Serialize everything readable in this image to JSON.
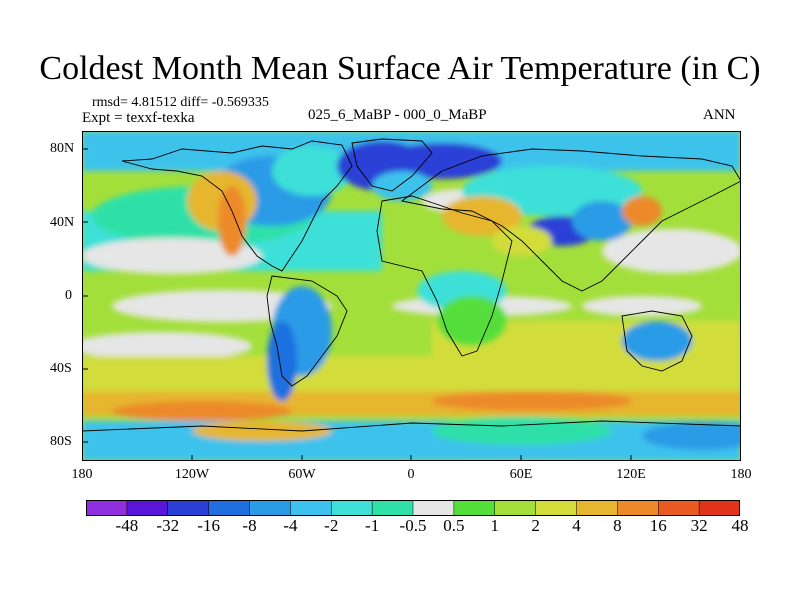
{
  "title": "Coldest Month Mean Surface Air Temperature (in C)",
  "stats": "rmsd= 4.81512 diff= -0.569335",
  "experiment": "Expt = texxf-texka",
  "period": "025_6_MaBP - 000_0_MaBP",
  "season": "ANN",
  "map": {
    "lat_labels": [
      "80N",
      "40N",
      "0",
      "40S",
      "80S"
    ],
    "lat_values": [
      80,
      40,
      0,
      -40,
      -80
    ],
    "lon_labels": [
      "180",
      "120W",
      "60W",
      "0",
      "60E",
      "120E",
      "180"
    ],
    "lon_values": [
      -180,
      -120,
      -60,
      0,
      60,
      120,
      180
    ],
    "lat_range": [
      -90,
      90
    ],
    "lon_range": [
      -180,
      180
    ]
  },
  "colorbar": {
    "labels": [
      "-48",
      "-32",
      "-16",
      "-8",
      "-4",
      "-2",
      "-1",
      "-0.5",
      "0.5",
      "1",
      "2",
      "4",
      "8",
      "16",
      "32",
      "48"
    ],
    "colors": [
      "#8f2fe0",
      "#5a16d8",
      "#2a3fd6",
      "#1f6fe0",
      "#2b9be6",
      "#3cc2ec",
      "#3ee0d8",
      "#2fe0a8",
      "#e6e6e6",
      "#54de3a",
      "#a3df3b",
      "#d2dd3a",
      "#e6b62e",
      "#ec8a2a",
      "#ea5a22",
      "#e1341a"
    ]
  }
}
